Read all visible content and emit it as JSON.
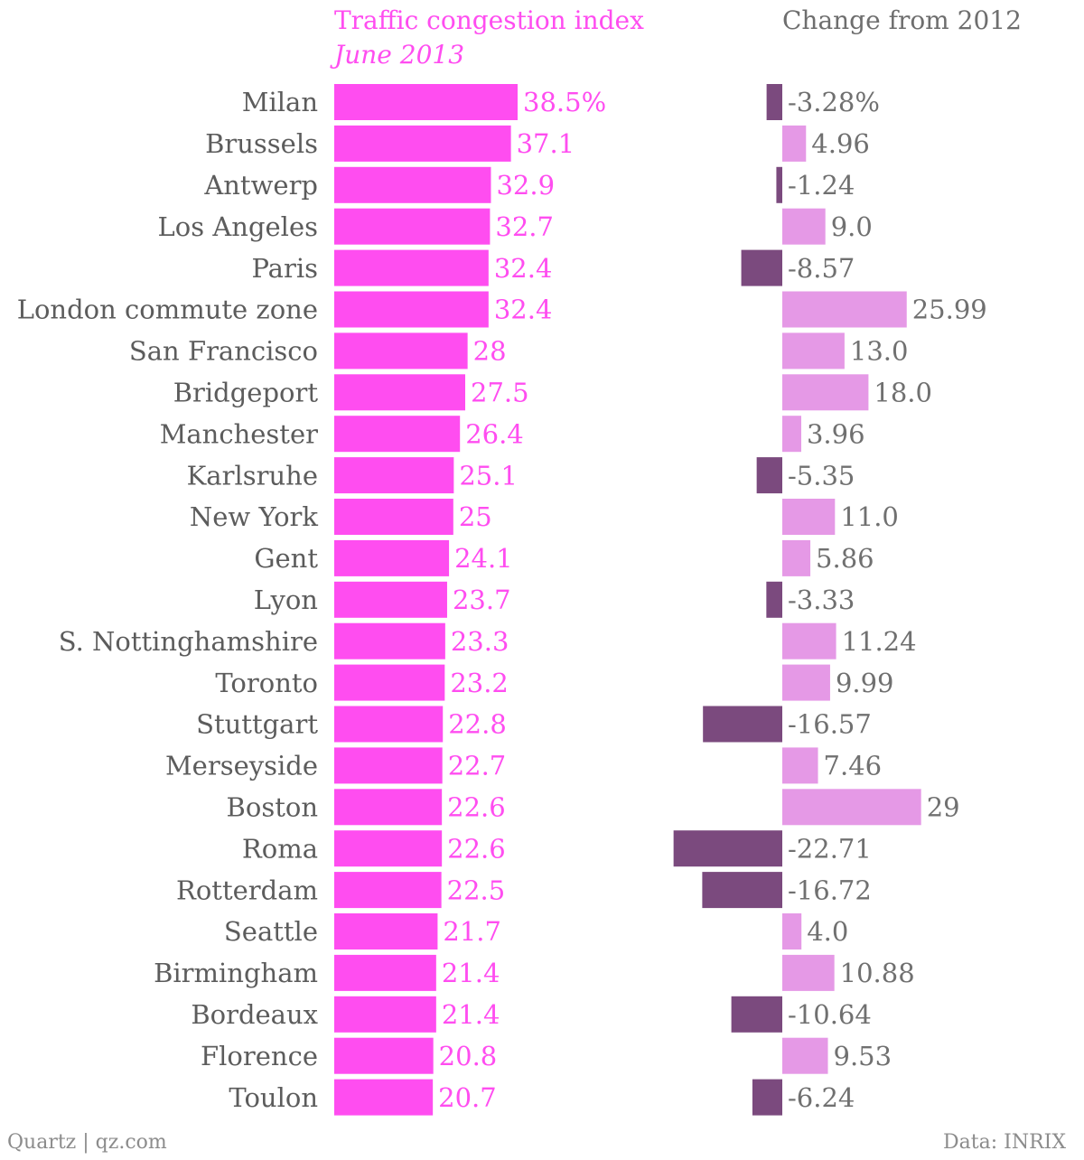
{
  "header": {
    "left_title": "Traffic congestion index",
    "left_subtitle": "June 2013",
    "right_title": "Change from 2012"
  },
  "footer": {
    "source_left": "Quartz | qz.com",
    "source_right": "Data: INRIX"
  },
  "colors": {
    "primary": "#ff4df0",
    "positive": "#e599e6",
    "negative": "#7b4a7e",
    "category_text": "#5c5c5c",
    "change_text": "#707070"
  },
  "chart_data": [
    {
      "type": "bar",
      "orientation": "horizontal",
      "title": "Traffic congestion index",
      "subtitle": "June 2013",
      "categories": [
        "Milan",
        "Brussels",
        "Antwerp",
        "Los Angeles",
        "Paris",
        "London commute zone",
        "San Francisco",
        "Bridgeport",
        "Manchester",
        "Karlsruhe",
        "New York",
        "Gent",
        "Lyon",
        "S. Nottinghamshire",
        "Toronto",
        "Stuttgart",
        "Merseyside",
        "Boston",
        "Roma",
        "Rotterdam",
        "Seattle",
        "Birmingham",
        "Bordeaux",
        "Florence",
        "Toulon"
      ],
      "values": [
        38.5,
        37.1,
        32.9,
        32.7,
        32.4,
        32.4,
        28,
        27.5,
        26.4,
        25.1,
        25,
        24.1,
        23.7,
        23.3,
        23.2,
        22.8,
        22.7,
        22.6,
        22.6,
        22.5,
        21.7,
        21.4,
        21.4,
        20.8,
        20.7
      ],
      "labels": [
        "38.5%",
        "37.1",
        "32.9",
        "32.7",
        "32.4",
        "32.4",
        "28",
        "27.5",
        "26.4",
        "25.1",
        "25",
        "24.1",
        "23.7",
        "23.3",
        "23.2",
        "22.8",
        "22.7",
        "22.6",
        "22.6",
        "22.5",
        "21.7",
        "21.4",
        "21.4",
        "20.8",
        "20.7"
      ],
      "xlim": [
        0,
        38.5
      ]
    },
    {
      "type": "bar",
      "orientation": "horizontal",
      "title": "Change from 2012",
      "categories": [
        "Milan",
        "Brussels",
        "Antwerp",
        "Los Angeles",
        "Paris",
        "London commute zone",
        "San Francisco",
        "Bridgeport",
        "Manchester",
        "Karlsruhe",
        "New York",
        "Gent",
        "Lyon",
        "S. Nottinghamshire",
        "Toronto",
        "Stuttgart",
        "Merseyside",
        "Boston",
        "Roma",
        "Rotterdam",
        "Seattle",
        "Birmingham",
        "Bordeaux",
        "Florence",
        "Toulon"
      ],
      "values": [
        -3.28,
        4.96,
        -1.24,
        9.0,
        -8.57,
        25.99,
        13.0,
        18.0,
        3.96,
        -5.35,
        11.0,
        5.86,
        -3.33,
        11.24,
        9.99,
        -16.57,
        7.46,
        29,
        -22.71,
        -16.72,
        4.0,
        10.88,
        -10.64,
        9.53,
        -6.24
      ],
      "labels": [
        "-3.28%",
        "4.96",
        "-1.24",
        "9.0",
        "-8.57",
        "25.99",
        "13.0",
        "18.0",
        "3.96",
        "-5.35",
        "11.0",
        "5.86",
        "-3.33",
        "11.24",
        "9.99",
        "-16.57",
        "7.46",
        "29",
        "-22.71",
        "-16.72",
        "4.0",
        "10.88",
        "-10.64",
        "9.53",
        "-6.24"
      ],
      "xlim": [
        -22.71,
        29
      ]
    }
  ]
}
